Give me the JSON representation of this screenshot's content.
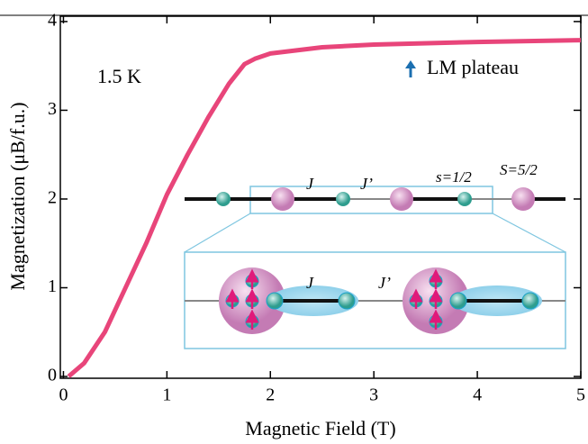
{
  "chart_data": {
    "type": "line",
    "x_label": "Magnetic Field (T)",
    "y_label": "Magnetization (μB/f.u.)",
    "x": [
      0.05,
      0.2,
      0.4,
      0.6,
      0.8,
      1.0,
      1.2,
      1.4,
      1.6,
      1.75,
      1.85,
      2.0,
      2.5,
      3.0,
      4.0,
      5.0
    ],
    "series": [
      {
        "name": "1.5 K",
        "color": "#e8457a",
        "values": [
          0,
          0.15,
          0.5,
          1.0,
          1.5,
          2.05,
          2.5,
          2.92,
          3.3,
          3.52,
          3.58,
          3.64,
          3.71,
          3.74,
          3.77,
          3.79
        ]
      }
    ],
    "xlim": [
      -0.03,
      5
    ],
    "ylim": [
      -0.02,
      4.06
    ],
    "xticks": [
      0,
      1,
      2,
      3,
      4,
      5
    ],
    "yticks": [
      0,
      1,
      2,
      3,
      4
    ],
    "annotations": {
      "plateau": "LM plateau",
      "J_top": "J",
      "Jp_top": "J’",
      "s_small": "s=1/2",
      "S_large": "S=5/2",
      "J_inset": "J",
      "Jp_inset": "J’"
    }
  }
}
